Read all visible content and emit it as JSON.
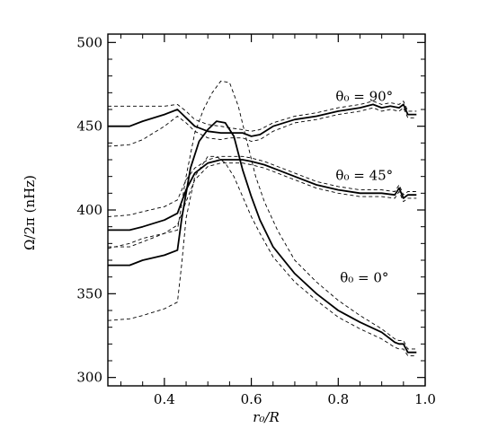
{
  "chart_data": {
    "type": "line",
    "xlabel": "r₀/R",
    "ylabel": "Ω/2π (nHz)",
    "xlim": [
      0.27,
      1.0
    ],
    "ylim": [
      295,
      505
    ],
    "xticks": [
      0.4,
      0.6,
      0.8,
      1.0
    ],
    "xtick_labels": [
      "0.4",
      "0.6",
      "0.8",
      "1.0"
    ],
    "yticks": [
      300,
      350,
      400,
      450,
      500
    ],
    "ytick_labels": [
      "300",
      "350",
      "400",
      "450",
      "500"
    ],
    "grid": false,
    "legend": "none",
    "annotations": [
      {
        "text": "θ₀ = 90°",
        "x": 0.86,
        "y": 465
      },
      {
        "text": "θ₀ = 45°",
        "x": 0.86,
        "y": 418
      },
      {
        "text": "θ₀ = 0°",
        "x": 0.86,
        "y": 357
      }
    ],
    "series": [
      {
        "style": "solid",
        "x": [
          0.27,
          0.32,
          0.35,
          0.4,
          0.43,
          0.45,
          0.47,
          0.5,
          0.53,
          0.55,
          0.58,
          0.6,
          0.62,
          0.65,
          0.7,
          0.75,
          0.8,
          0.85,
          0.88,
          0.9,
          0.92,
          0.94,
          0.95,
          0.96,
          0.98
        ],
        "y": [
          450,
          450,
          453,
          457,
          460,
          455,
          450,
          447,
          446,
          446,
          446,
          444,
          445,
          450,
          454,
          456,
          459,
          461,
          463,
          461,
          462,
          461,
          463,
          457,
          457
        ]
      },
      {
        "style": "dashed",
        "x": [
          0.27,
          0.32,
          0.35,
          0.4,
          0.43,
          0.45,
          0.47,
          0.5,
          0.53,
          0.55,
          0.58,
          0.6,
          0.62,
          0.65,
          0.7,
          0.75,
          0.8,
          0.85,
          0.88,
          0.9,
          0.92,
          0.94,
          0.95,
          0.96,
          0.98
        ],
        "y": [
          462,
          462,
          462,
          462,
          463,
          459,
          454,
          451,
          450,
          449,
          448,
          447,
          448,
          452,
          456,
          458,
          461,
          463,
          465,
          463,
          464,
          463,
          465,
          459,
          459
        ]
      },
      {
        "style": "dashed",
        "x": [
          0.27,
          0.32,
          0.35,
          0.4,
          0.43,
          0.45,
          0.47,
          0.5,
          0.53,
          0.55,
          0.58,
          0.6,
          0.62,
          0.65,
          0.7,
          0.75,
          0.8,
          0.85,
          0.88,
          0.9,
          0.92,
          0.94,
          0.95,
          0.96,
          0.98
        ],
        "y": [
          438,
          439,
          442,
          450,
          456,
          452,
          447,
          443,
          442,
          443,
          443,
          441,
          442,
          447,
          452,
          454,
          457,
          459,
          461,
          459,
          460,
          459,
          461,
          455,
          455
        ]
      },
      {
        "style": "solid",
        "x": [
          0.27,
          0.32,
          0.35,
          0.4,
          0.43,
          0.45,
          0.47,
          0.5,
          0.53,
          0.55,
          0.58,
          0.6,
          0.63,
          0.66,
          0.7,
          0.75,
          0.8,
          0.85,
          0.9,
          0.93,
          0.94,
          0.95,
          0.96,
          0.98
        ],
        "y": [
          388,
          388,
          390,
          394,
          398,
          412,
          422,
          428,
          430,
          430,
          430,
          429,
          427,
          424,
          420,
          415,
          412,
          410,
          410,
          409,
          413,
          407,
          409,
          409
        ]
      },
      {
        "style": "dashed",
        "x": [
          0.27,
          0.32,
          0.35,
          0.4,
          0.43,
          0.45,
          0.47,
          0.5,
          0.53,
          0.55,
          0.58,
          0.6,
          0.63,
          0.66,
          0.7,
          0.75,
          0.8,
          0.85,
          0.9,
          0.93,
          0.94,
          0.95,
          0.96,
          0.98
        ],
        "y": [
          396,
          397,
          399,
          402,
          406,
          418,
          425,
          430,
          432,
          432,
          432,
          431,
          429,
          426,
          422,
          417,
          414,
          412,
          412,
          411,
          415,
          409,
          411,
          411
        ]
      },
      {
        "style": "dashed",
        "x": [
          0.27,
          0.32,
          0.35,
          0.4,
          0.43,
          0.45,
          0.47,
          0.5,
          0.53,
          0.55,
          0.58,
          0.6,
          0.63,
          0.66,
          0.7,
          0.75,
          0.8,
          0.85,
          0.9,
          0.93,
          0.94,
          0.95,
          0.96,
          0.98
        ],
        "y": [
          378,
          378,
          381,
          386,
          391,
          405,
          418,
          426,
          428,
          428,
          428,
          427,
          425,
          422,
          418,
          413,
          410,
          408,
          408,
          407,
          411,
          405,
          407,
          407
        ]
      },
      {
        "style": "solid",
        "x": [
          0.27,
          0.32,
          0.35,
          0.4,
          0.43,
          0.44,
          0.46,
          0.48,
          0.5,
          0.52,
          0.54,
          0.56,
          0.58,
          0.6,
          0.62,
          0.65,
          0.7,
          0.75,
          0.8,
          0.85,
          0.9,
          0.93,
          0.94,
          0.95,
          0.96,
          0.98
        ],
        "y": [
          367,
          367,
          370,
          373,
          376,
          395,
          425,
          441,
          448,
          453,
          452,
          444,
          424,
          408,
          394,
          378,
          362,
          350,
          340,
          333,
          327,
          321,
          320,
          320,
          315,
          315
        ]
      },
      {
        "style": "dashed",
        "x": [
          0.27,
          0.32,
          0.35,
          0.4,
          0.43,
          0.45,
          0.47,
          0.49,
          0.51,
          0.53,
          0.55,
          0.57,
          0.59,
          0.61,
          0.63,
          0.66,
          0.7,
          0.75,
          0.8,
          0.85,
          0.9,
          0.93,
          0.94,
          0.95,
          0.96,
          0.98
        ],
        "y": [
          377,
          380,
          383,
          386,
          388,
          420,
          446,
          460,
          470,
          477,
          476,
          462,
          441,
          420,
          405,
          388,
          370,
          357,
          346,
          337,
          329,
          323,
          322,
          322,
          317,
          317
        ]
      },
      {
        "style": "dashed",
        "x": [
          0.27,
          0.32,
          0.35,
          0.4,
          0.43,
          0.44,
          0.45,
          0.47,
          0.5,
          0.52,
          0.54,
          0.56,
          0.58,
          0.6,
          0.62,
          0.65,
          0.7,
          0.75,
          0.8,
          0.85,
          0.9,
          0.93,
          0.94,
          0.95,
          0.96,
          0.98
        ],
        "y": [
          334,
          335,
          337,
          341,
          345,
          368,
          395,
          420,
          432,
          432,
          428,
          420,
          408,
          396,
          386,
          372,
          357,
          346,
          336,
          329,
          323,
          318,
          317,
          317,
          313,
          313
        ]
      }
    ]
  }
}
